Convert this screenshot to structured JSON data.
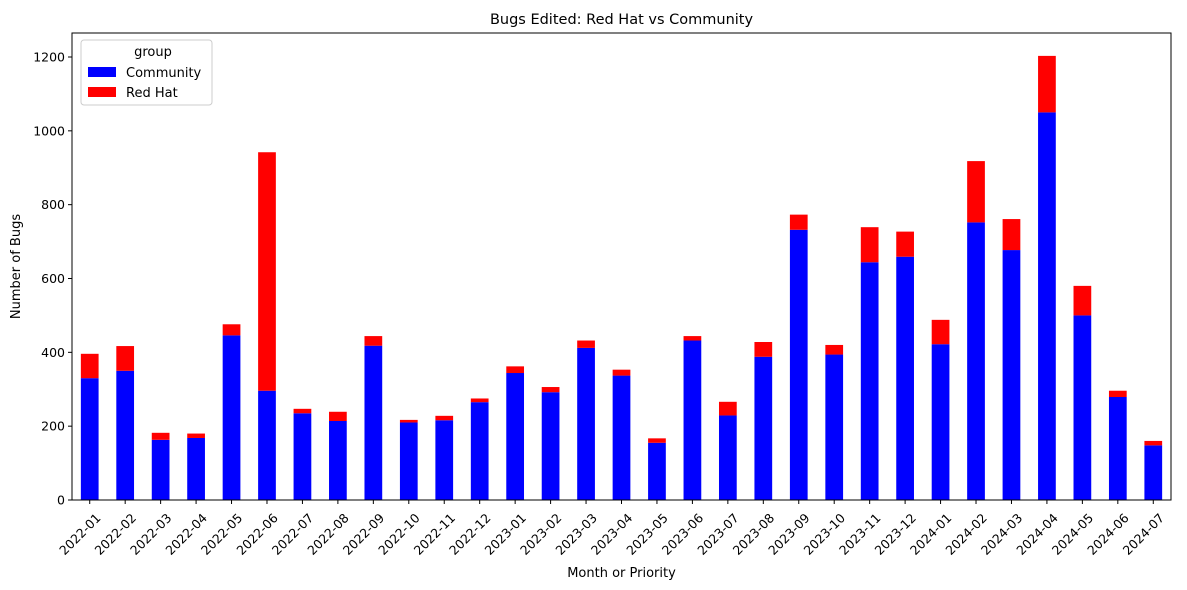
{
  "chart_data": {
    "type": "bar",
    "stacked": true,
    "title": "Bugs Edited: Red Hat vs Community",
    "xlabel": "Month or Priority",
    "ylabel": "Number of Bugs",
    "ylim": [
      0,
      1265
    ],
    "yticks": [
      0,
      200,
      400,
      600,
      800,
      1000,
      1200
    ],
    "grid": false,
    "legend": {
      "title": "group",
      "position": "top-left"
    },
    "categories": [
      "2022-01",
      "2022-02",
      "2022-03",
      "2022-04",
      "2022-05",
      "2022-06",
      "2022-07",
      "2022-08",
      "2022-09",
      "2022-10",
      "2022-11",
      "2022-12",
      "2023-01",
      "2023-02",
      "2023-03",
      "2023-04",
      "2023-05",
      "2023-06",
      "2023-07",
      "2023-08",
      "2023-09",
      "2023-10",
      "2023-11",
      "2023-12",
      "2024-01",
      "2024-02",
      "2024-03",
      "2024-04",
      "2024-05",
      "2024-06",
      "2024-07"
    ],
    "series": [
      {
        "name": "Community",
        "color": "#0000ff",
        "values": [
          330,
          350,
          163,
          168,
          446,
          296,
          235,
          214,
          418,
          210,
          216,
          265,
          344,
          292,
          412,
          337,
          155,
          432,
          229,
          388,
          732,
          394,
          644,
          659,
          422,
          752,
          677,
          1050,
          500,
          279,
          148
        ]
      },
      {
        "name": "Red Hat",
        "color": "#ff0000",
        "values": [
          66,
          67,
          19,
          12,
          30,
          646,
          12,
          25,
          26,
          7,
          12,
          10,
          18,
          14,
          20,
          16,
          12,
          12,
          37,
          40,
          41,
          26,
          95,
          68,
          66,
          166,
          84,
          153,
          80,
          17,
          12
        ]
      }
    ]
  }
}
